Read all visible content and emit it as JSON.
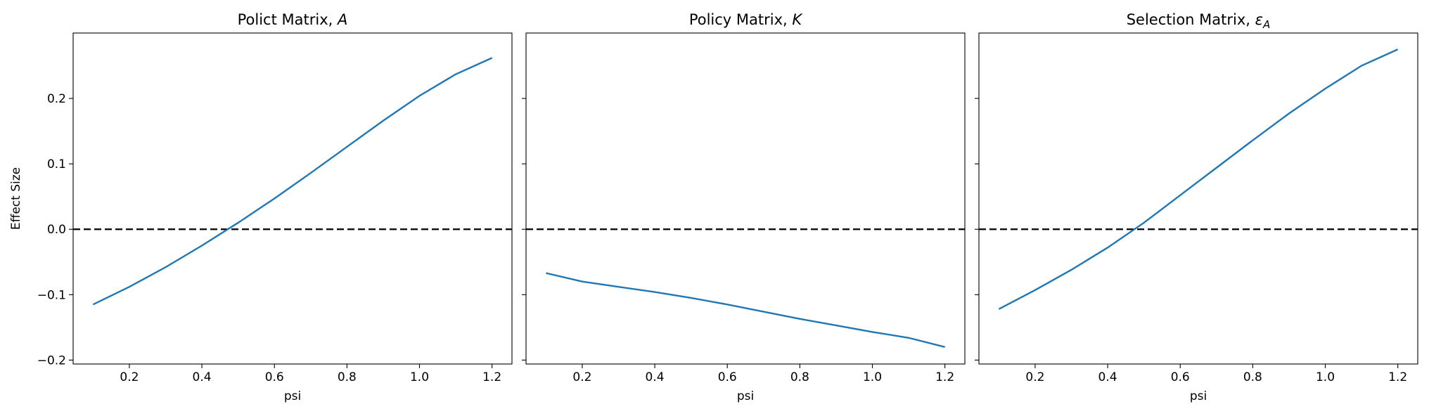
{
  "chart_data": [
    {
      "type": "line",
      "title": "Polict Matrix, ",
      "title_symbol": "A",
      "xlabel": "psi",
      "ylabel": "Effect Size",
      "x": [
        0.1,
        0.2,
        0.3,
        0.4,
        0.5,
        0.6,
        0.7,
        0.8,
        0.9,
        1.0,
        1.1,
        1.2
      ],
      "values": [
        -0.115,
        -0.088,
        -0.058,
        -0.025,
        0.01,
        0.047,
        0.086,
        0.126,
        0.166,
        0.204,
        0.237,
        0.262
      ],
      "color": "#1f77b4",
      "hline": 0,
      "xlim": [
        0.045,
        1.255
      ],
      "ylim": [
        -0.206,
        0.3
      ],
      "xticks": [
        0.2,
        0.4,
        0.6,
        0.8,
        {
          "value": 1,
          "label": "1.0"
        },
        1.2
      ],
      "yticks": [
        {
          "value": -0.2,
          "label": "−0.2"
        },
        {
          "value": -0.1,
          "label": "−0.1"
        },
        {
          "value": 0,
          "label": "0.0"
        },
        0.1,
        0.2
      ]
    },
    {
      "type": "line",
      "title": "Policy Matrix, ",
      "title_symbol": "K",
      "xlabel": "psi",
      "x": [
        0.1,
        0.2,
        0.3,
        0.4,
        0.5,
        0.6,
        0.7,
        0.8,
        0.9,
        1.0,
        1.1,
        1.2
      ],
      "values": [
        -0.067,
        -0.08,
        -0.088,
        -0.096,
        -0.105,
        -0.115,
        -0.126,
        -0.137,
        -0.147,
        -0.157,
        -0.166,
        -0.18
      ],
      "color": "#1f77b4",
      "hline": 0,
      "xlim": [
        0.045,
        1.255
      ],
      "ylim": [
        -0.206,
        0.3
      ],
      "xticks": [
        0.2,
        0.4,
        0.6,
        0.8,
        {
          "value": 1,
          "label": "1.0"
        },
        1.2
      ]
    },
    {
      "type": "line",
      "title": "Selection Matrix, ",
      "title_symbol": "ε",
      "title_subscript": "A",
      "xlabel": "psi",
      "x": [
        0.1,
        0.2,
        0.3,
        0.4,
        0.5,
        0.6,
        0.7,
        0.8,
        0.9,
        1.0,
        1.1,
        1.2
      ],
      "values": [
        -0.122,
        -0.093,
        -0.062,
        -0.028,
        0.01,
        0.052,
        0.094,
        0.136,
        0.177,
        0.215,
        0.25,
        0.275
      ],
      "color": "#1f77b4",
      "hline": 0,
      "xlim": [
        0.045,
        1.255
      ],
      "ylim": [
        -0.206,
        0.3
      ],
      "xticks": [
        0.2,
        0.4,
        0.6,
        0.8,
        {
          "value": 1,
          "label": "1.0"
        },
        1.2
      ]
    }
  ]
}
